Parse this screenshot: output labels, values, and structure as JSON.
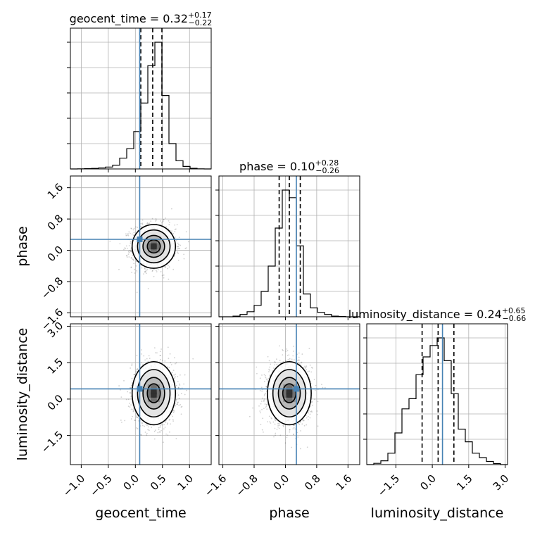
{
  "chart_data": {
    "type": "corner",
    "parameters": [
      "geocent_time",
      "phase",
      "luminosity_distance"
    ],
    "titles": [
      {
        "param": "geocent_time",
        "median": "0.32",
        "plus": "+0.17",
        "minus": "−0.22"
      },
      {
        "param": "phase",
        "median": "0.10",
        "plus": "+0.28",
        "minus": "−0.26"
      },
      {
        "param": "luminosity_distance",
        "median": "0.24",
        "plus": "+0.65",
        "minus": "−0.66"
      }
    ],
    "ranges": [
      [
        -1.2,
        1.4
      ],
      [
        -1.7,
        1.9
      ],
      [
        -2.7,
        3.1
      ]
    ],
    "ticks": [
      {
        "values": [
          -1.0,
          -0.5,
          0.0,
          0.5,
          1.0
        ],
        "labels": [
          "−1.0",
          "−0.5",
          "0.0",
          "0.5",
          "1.0"
        ]
      },
      {
        "values": [
          -1.6,
          -0.8,
          0.0,
          0.8,
          1.6
        ],
        "labels": [
          "−1.6",
          "−0.8",
          "0.0",
          "0.8",
          "1.6"
        ]
      },
      {
        "values": [
          -1.5,
          0.0,
          1.5,
          3.0
        ],
        "labels": [
          "−1.5",
          "0.0",
          "1.5",
          "3.0"
        ]
      }
    ],
    "injected_values": [
      0.08,
      0.28,
      0.42
    ],
    "quantiles": [
      [
        0.1,
        0.32,
        0.49
      ],
      [
        -0.16,
        0.1,
        0.38
      ],
      [
        -0.42,
        0.24,
        0.89
      ]
    ],
    "histograms": [
      {
        "bin_edges": [
          -1.2,
          -1.07,
          -0.94,
          -0.81,
          -0.68,
          -0.55,
          -0.42,
          -0.29,
          -0.16,
          -0.03,
          0.1,
          0.23,
          0.36,
          0.49,
          0.62,
          0.75,
          0.88,
          1.01,
          1.14,
          1.27,
          1.4
        ],
        "counts": [
          0,
          1,
          2,
          4,
          8,
          15,
          30,
          85,
          160,
          295,
          520,
          815,
          1000,
          580,
          200,
          65,
          20,
          5,
          1,
          0
        ]
      },
      {
        "bin_edges": [
          -1.7,
          -1.52,
          -1.34,
          -1.16,
          -0.98,
          -0.8,
          -0.62,
          -0.44,
          -0.26,
          -0.08,
          0.1,
          0.28,
          0.46,
          0.64,
          0.82,
          1.0,
          1.18,
          1.36,
          1.54,
          1.72,
          1.9
        ],
        "counts": [
          0,
          0,
          5,
          18,
          40,
          90,
          200,
          400,
          700,
          1000,
          940,
          560,
          180,
          70,
          35,
          18,
          5,
          2,
          0,
          0
        ]
      },
      {
        "bin_edges": [
          -2.7,
          -2.41,
          -2.12,
          -1.83,
          -1.54,
          -1.25,
          -0.96,
          -0.67,
          -0.38,
          -0.09,
          0.2,
          0.49,
          0.78,
          1.07,
          1.36,
          1.65,
          1.94,
          2.23,
          2.52,
          2.81,
          3.1
        ],
        "counts": [
          0,
          10,
          30,
          90,
          250,
          440,
          520,
          710,
          850,
          940,
          1000,
          820,
          560,
          280,
          180,
          90,
          55,
          25,
          8,
          0
        ]
      }
    ],
    "grid": true
  }
}
